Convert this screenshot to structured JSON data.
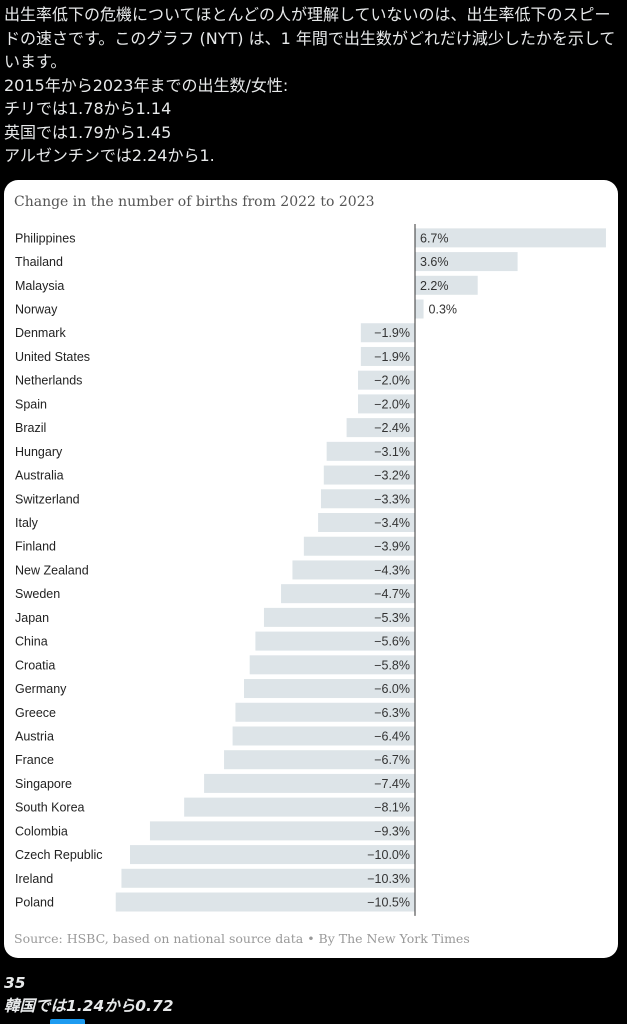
{
  "post": {
    "lines": [
      "出生率低下の危機についてほとんどの人が理解していないのは、出生率低下のスピードの速さです。このグラフ (NYT) は、1 年間で出生数がどれだけ減少したかを示しています。",
      "2015年から2023年までの出生数/女性:",
      "チリでは1.78から1.14",
      "英国では1.79から1.45",
      "アルゼンチンでは2.24から1."
    ]
  },
  "chart_data": {
    "type": "bar",
    "orientation": "horizontal",
    "title": "Change in the number of births from 2022 to 2023",
    "source": "Source: HSBC, based on national source data • By The New York Times",
    "unit": "%",
    "bar_color": "#dde4e8",
    "axis_color": "#333333",
    "categories": [
      "Philippines",
      "Thailand",
      "Malaysia",
      "Norway",
      "Denmark",
      "United States",
      "Netherlands",
      "Spain",
      "Brazil",
      "Hungary",
      "Australia",
      "Switzerland",
      "Italy",
      "Finland",
      "New Zealand",
      "Sweden",
      "Japan",
      "China",
      "Croatia",
      "Germany",
      "Greece",
      "Austria",
      "France",
      "Singapore",
      "South Korea",
      "Colombia",
      "Czech Republic",
      "Ireland",
      "Poland"
    ],
    "values": [
      6.7,
      3.6,
      2.2,
      0.3,
      -1.9,
      -1.9,
      -2.0,
      -2.0,
      -2.4,
      -3.1,
      -3.2,
      -3.3,
      -3.4,
      -3.9,
      -4.3,
      -4.7,
      -5.3,
      -5.6,
      -5.8,
      -6.0,
      -6.3,
      -6.4,
      -6.7,
      -7.4,
      -8.1,
      -9.3,
      -10.0,
      -10.3,
      -10.5
    ],
    "labels": [
      "6.7%",
      "3.6%",
      "2.2%",
      "0.3%",
      "−1.9%",
      "−1.9%",
      "−2.0%",
      "−2.0%",
      "−2.4%",
      "−3.1%",
      "−3.2%",
      "−3.3%",
      "−3.4%",
      "−3.9%",
      "−4.3%",
      "−4.7%",
      "−5.3%",
      "−5.6%",
      "−5.8%",
      "−6.0%",
      "−6.3%",
      "−6.4%",
      "−6.7%",
      "−7.4%",
      "−8.1%",
      "−9.3%",
      "−10.0%",
      "−10.3%",
      "−10.5%"
    ]
  },
  "footer": {
    "number": "35",
    "text": "韓国では1.24から0.72"
  }
}
